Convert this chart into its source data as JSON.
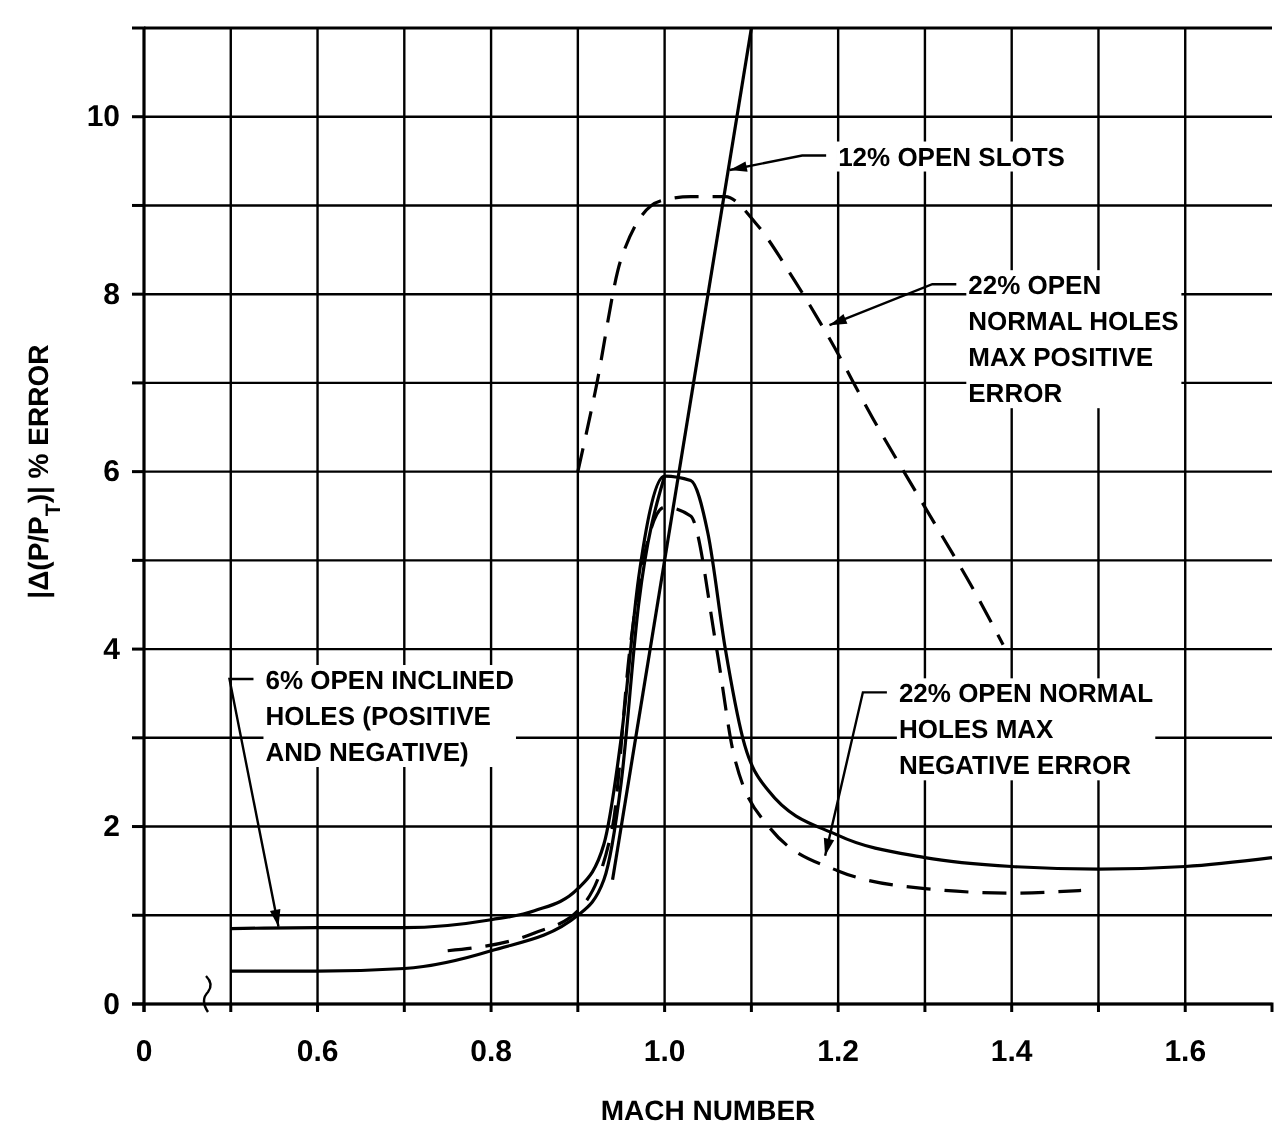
{
  "chart_data": {
    "type": "line",
    "xlabel": "MACH NUMBER",
    "ylabel": "|Δ(P/P$_{T}$)| % ERROR",
    "xlim": [
      0.4,
      1.7
    ],
    "ylim": [
      0,
      11
    ],
    "xticks": [
      {
        "value": 0.4,
        "label": "0"
      },
      {
        "value": 0.5,
        "label": null
      },
      {
        "value": 0.6,
        "label": "0.6"
      },
      {
        "value": 0.7,
        "label": null
      },
      {
        "value": 0.8,
        "label": "0.8"
      },
      {
        "value": 0.9,
        "label": null
      },
      {
        "value": 1.0,
        "label": "1.0"
      },
      {
        "value": 1.1,
        "label": null
      },
      {
        "value": 1.2,
        "label": "1.2"
      },
      {
        "value": 1.3,
        "label": null
      },
      {
        "value": 1.4,
        "label": "1.4"
      },
      {
        "value": 1.5,
        "label": null
      },
      {
        "value": 1.6,
        "label": "1.6"
      }
    ],
    "yticks": [
      0,
      {
        "value": 1,
        "label": null
      },
      2,
      {
        "value": 3,
        "label": null
      },
      4,
      {
        "value": 5,
        "label": null
      },
      6,
      {
        "value": 7,
        "label": null
      },
      8,
      {
        "value": 9,
        "label": null
      },
      10
    ],
    "grid": true,
    "marker": "none",
    "series": [
      {
        "color": "#000000",
        "line_style": "solid",
        "x": [
          0.94,
          1.1
        ],
        "values": [
          1.4,
          11
        ]
      },
      {
        "color": "#000000",
        "line_style": "dashed",
        "x": [
          0.9,
          0.92,
          0.95,
          0.995,
          1.03,
          1.07,
          1.105,
          1.15,
          1.19,
          1.24,
          1.3,
          1.36,
          1.39
        ],
        "values": [
          6.0,
          6.9,
          8.4,
          9.05,
          9.1,
          9.1,
          8.8,
          8.15,
          7.5,
          6.6,
          5.6,
          4.6,
          4.05
        ]
      },
      {
        "color": "#000000",
        "line_style": "solid",
        "x": [
          0.5,
          0.6,
          0.7,
          0.8,
          0.85,
          0.9,
          0.93,
          0.95,
          0.97,
          1.0,
          1.03,
          1.05,
          1.07,
          1.09,
          1.12,
          1.2,
          1.3,
          1.4,
          1.5,
          1.6,
          1.7
        ],
        "values": [
          0.85,
          0.86,
          0.86,
          0.95,
          1.05,
          1.3,
          1.8,
          3.0,
          4.8,
          5.95,
          5.9,
          5.3,
          4.0,
          3.0,
          2.4,
          1.9,
          1.65,
          1.55,
          1.52,
          1.55,
          1.65
        ]
      },
      {
        "color": "#000000",
        "line_style": "solid",
        "x": [
          0.5,
          0.6,
          0.7,
          0.8,
          0.9,
          0.93,
          0.95,
          0.97,
          1.0
        ],
        "values": [
          0.37,
          0.37,
          0.4,
          0.6,
          1.0,
          1.4,
          2.5,
          4.5,
          5.95
        ]
      },
      {
        "color": "#000000",
        "line_style": "dashed",
        "x": [
          0.75,
          0.85,
          0.9,
          0.94,
          0.96,
          1.0,
          1.03,
          1.06,
          1.08,
          1.12,
          1.2,
          1.3,
          1.4,
          1.48
        ],
        "values": [
          0.6,
          0.8,
          1.05,
          2.0,
          4.0,
          5.6,
          5.5,
          4.0,
          2.8,
          2.0,
          1.5,
          1.3,
          1.25,
          1.28
        ]
      }
    ],
    "annotations": [
      {
        "text": "12% OPEN SLOTS",
        "x": 1.075,
        "y": 9.4
      },
      {
        "text": "22% OPEN NORMAL HOLES MAX POSITIVE ERROR",
        "x": 1.19,
        "y": 7.65
      },
      {
        "text": "6% OPEN INCLINED HOLES (POSITIVE AND NEGATIVE)",
        "x": 0.555,
        "y": 0.87
      },
      {
        "text": "22% OPEN NORMAL HOLES MAX NEGATIVE ERROR",
        "x": 1.185,
        "y": 1.67
      }
    ]
  }
}
